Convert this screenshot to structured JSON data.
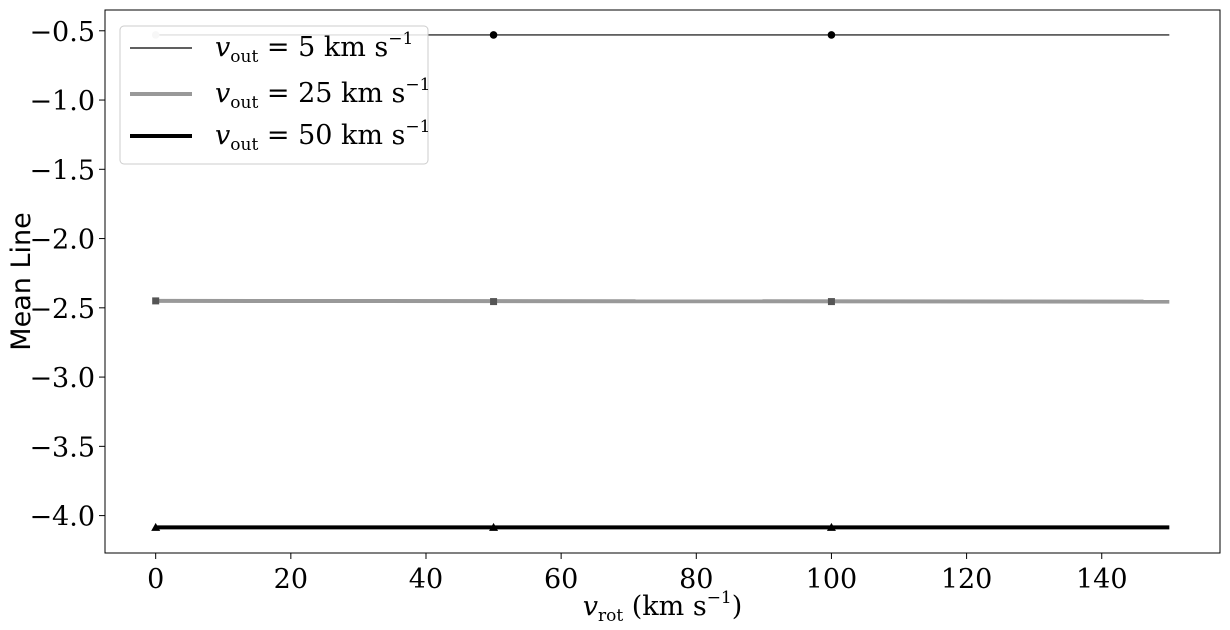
{
  "chart_data": {
    "type": "line",
    "xlabel": {
      "main": "v",
      "sub": "rot",
      "rest": " (km s",
      "sup": "−1",
      "close": ")"
    },
    "ylabel": "Mean Line",
    "xlim": [
      -7.5,
      157.5
    ],
    "ylim": [
      -4.27,
      -0.35
    ],
    "xticks": [
      0,
      20,
      40,
      60,
      80,
      100,
      120,
      140
    ],
    "xtick_labels": [
      "0",
      "20",
      "40",
      "60",
      "80",
      "100",
      "120",
      "140"
    ],
    "yticks": [
      -0.5,
      -1.0,
      -1.5,
      -2.0,
      -2.5,
      -3.0,
      -3.5,
      -4.0
    ],
    "ytick_labels": [
      "−0.5",
      "−1.0",
      "−1.5",
      "−2.0",
      "−2.5",
      "−3.0",
      "−3.5",
      "−4.0"
    ],
    "grid": false,
    "legend_placement": "top-left",
    "series": [
      {
        "name": {
          "main": "v",
          "sub": "out",
          "rest": " = 5 km s",
          "sup": "−1"
        },
        "color": "#000000",
        "line": {
          "x": [
            0,
            150
          ],
          "y": [
            -0.53,
            -0.53
          ]
        },
        "points": {
          "x": [
            0,
            50,
            100
          ],
          "y": [
            -0.53,
            -0.53,
            -0.53
          ]
        },
        "point_colors": [
          "#c8c8c8",
          "#000000",
          "#000000"
        ],
        "marker": "circle"
      },
      {
        "name": {
          "main": "v",
          "sub": "out",
          "rest": " = 25 km s",
          "sup": "−1"
        },
        "color": "#999999",
        "line": {
          "x": [
            0,
            150
          ],
          "y": [
            -2.45,
            -2.455
          ]
        },
        "points": {
          "x": [
            0,
            50,
            100
          ],
          "y": [
            -2.45,
            -2.455,
            -2.455
          ]
        },
        "point_colors": [
          "#555555",
          "#555555",
          "#555555"
        ],
        "marker": "square"
      },
      {
        "name": {
          "main": "v",
          "sub": "out",
          "rest": " = 50 km s",
          "sup": "−1"
        },
        "color": "#000000",
        "line": {
          "x": [
            0,
            150
          ],
          "y": [
            -4.085,
            -4.085
          ]
        },
        "points": {
          "x": [
            0,
            50,
            100
          ],
          "y": [
            -4.085,
            -4.085,
            -4.085
          ]
        },
        "point_colors": [
          "#000000",
          "#000000",
          "#000000"
        ],
        "marker": "triangle"
      }
    ]
  }
}
